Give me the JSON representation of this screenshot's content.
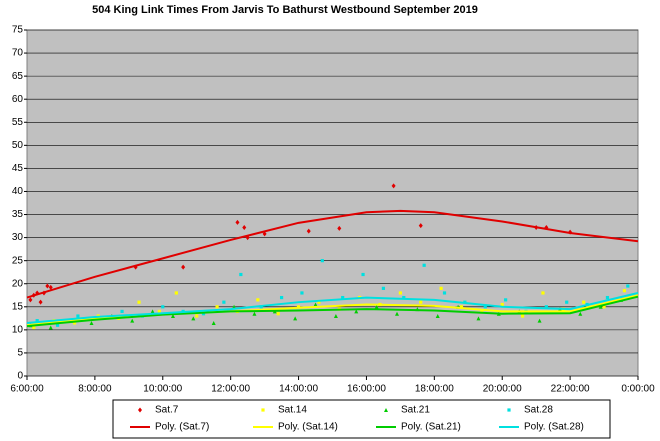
{
  "chart_data": {
    "type": "scatter",
    "title": "504 King Link Times From Jarvis To Bathurst Westbound September 2019",
    "xlim": [
      6,
      24
    ],
    "xticks": [
      {
        "value": 6,
        "label": "6:00:00"
      },
      {
        "value": 8,
        "label": "8:00:00"
      },
      {
        "value": 10,
        "label": "10:00:00"
      },
      {
        "value": 12,
        "label": "12:00:00"
      },
      {
        "value": 14,
        "label": "14:00:00"
      },
      {
        "value": 16,
        "label": "16:00:00"
      },
      {
        "value": 18,
        "label": "18:00:00"
      },
      {
        "value": 20,
        "label": "20:00:00"
      },
      {
        "value": 22,
        "label": "22:00:00"
      },
      {
        "value": 24,
        "label": "0:00:00"
      }
    ],
    "ylim": [
      0,
      75
    ],
    "yticks": [
      0,
      5,
      10,
      15,
      20,
      25,
      30,
      35,
      40,
      45,
      50,
      55,
      60,
      65,
      70,
      75
    ],
    "grid": true,
    "legend": "bottom",
    "series": [
      {
        "name": "Sat.7",
        "color": "#e00000",
        "mode": "markers",
        "marker": "diamond",
        "x": [
          6.1,
          6.2,
          6.3,
          6.4,
          6.5,
          6.6,
          6.7,
          9.2,
          10.6,
          12.2,
          12.4,
          12.5,
          13.0,
          14.3,
          15.2,
          16.8,
          17.6,
          21.0,
          21.3,
          22.0
        ],
        "values": [
          16.5,
          17.5,
          18,
          16,
          18,
          19.5,
          19.2,
          23.6,
          23.6,
          33.3,
          32.2,
          30,
          30.8,
          31.4,
          32,
          41.2,
          32.6,
          32.2,
          32.2,
          31.2
        ]
      },
      {
        "name": "Sat.14",
        "color": "#ffff00",
        "mode": "markers",
        "marker": "square",
        "x": [
          6.2,
          6.8,
          7.4,
          8.1,
          8.7,
          9.3,
          9.9,
          10.4,
          11.0,
          11.6,
          12.2,
          12.8,
          13.4,
          14.0,
          14.6,
          15.2,
          15.8,
          16.4,
          17.0,
          17.6,
          18.2,
          18.8,
          19.4,
          20.0,
          20.6,
          21.2,
          21.8,
          22.4,
          23.0,
          23.6
        ],
        "values": [
          10.5,
          12,
          11.5,
          13,
          12.5,
          16,
          14,
          18,
          13,
          15,
          14,
          16.5,
          13.5,
          15,
          16,
          14.5,
          17,
          15.5,
          18,
          16,
          19,
          15,
          14,
          15.5,
          13,
          18,
          14.5,
          16,
          15,
          18.5
        ]
      },
      {
        "name": "Sat.21",
        "color": "#00cc00",
        "mode": "markers",
        "marker": "triangle",
        "x": [
          6.1,
          6.7,
          7.3,
          7.9,
          8.5,
          9.1,
          9.7,
          10.3,
          10.9,
          11.5,
          12.1,
          12.7,
          13.3,
          13.9,
          14.5,
          15.1,
          15.7,
          16.3,
          16.9,
          17.5,
          18.1,
          18.7,
          19.3,
          19.9,
          20.5,
          21.1,
          21.7,
          22.3,
          22.9,
          23.5
        ],
        "values": [
          11,
          10.5,
          12,
          11.5,
          13,
          12,
          14,
          13,
          12.5,
          11.5,
          15,
          13.5,
          14,
          12.5,
          15.5,
          13,
          14,
          15,
          13.5,
          14.5,
          13,
          15,
          12.5,
          13.5,
          14,
          12,
          14.5,
          13.5,
          15,
          16.5
        ]
      },
      {
        "name": "Sat.28",
        "color": "#00e0e0",
        "mode": "markers",
        "marker": "square",
        "x": [
          6.3,
          6.9,
          7.5,
          8.2,
          8.8,
          9.4,
          10.0,
          10.6,
          11.2,
          11.8,
          12.3,
          12.9,
          13.5,
          14.1,
          14.7,
          15.3,
          15.9,
          16.5,
          17.1,
          17.7,
          18.3,
          18.9,
          19.5,
          20.1,
          20.7,
          21.3,
          21.9,
          22.5,
          23.1,
          23.7
        ],
        "values": [
          12,
          11,
          13,
          12.5,
          14,
          13,
          15,
          14,
          13.5,
          16,
          22,
          15,
          17,
          18,
          25,
          17,
          22,
          19,
          17,
          24,
          18,
          16,
          15,
          16.5,
          14,
          15,
          16,
          15.5,
          17,
          19.5
        ]
      },
      {
        "name": "Poly. (Sat.7)",
        "color": "#e00000",
        "mode": "line",
        "x": [
          6,
          8,
          10,
          12,
          14,
          16,
          17,
          18,
          20,
          22,
          24
        ],
        "values": [
          17,
          21.5,
          25.5,
          29.5,
          33.2,
          35.5,
          35.8,
          35.5,
          33.5,
          31,
          29.2
        ]
      },
      {
        "name": "Poly. (Sat.14)",
        "color": "#ffff00",
        "mode": "line",
        "x": [
          6,
          8,
          10,
          12,
          14,
          16,
          18,
          20,
          22,
          24
        ],
        "values": [
          11,
          12.5,
          13.5,
          14,
          14.8,
          15.5,
          15.2,
          14,
          14,
          17.5
        ]
      },
      {
        "name": "Poly. (Sat.21)",
        "color": "#00cc00",
        "mode": "line",
        "x": [
          6,
          8,
          10,
          12,
          14,
          16,
          18,
          20,
          22,
          24
        ],
        "values": [
          10.8,
          12.2,
          13.3,
          14,
          14.2,
          14.5,
          14.2,
          13.5,
          13.6,
          17.2
        ]
      },
      {
        "name": "Poly. (Sat.28)",
        "color": "#00e0e0",
        "mode": "line",
        "x": [
          6,
          8,
          10,
          12,
          14,
          16,
          18,
          20,
          22,
          24
        ],
        "values": [
          11.5,
          12.8,
          13.6,
          14.5,
          16,
          17,
          16.5,
          15,
          14.5,
          18
        ]
      }
    ]
  }
}
